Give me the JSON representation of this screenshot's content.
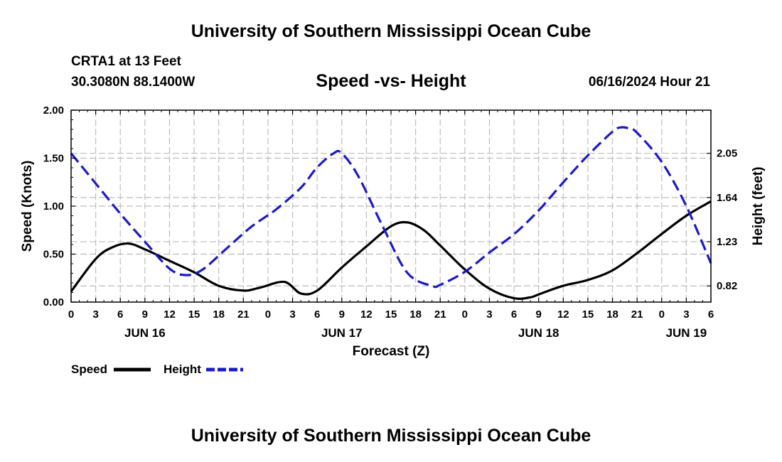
{
  "header": {
    "title": "University of Southern Mississippi Ocean Cube",
    "station": "CRTA1 at 13 Feet",
    "coordinates": "30.3080N  88.1400W",
    "chart_title": "Speed -vs- Height",
    "datetime": "06/16/2024 Hour 21"
  },
  "footer": {
    "title": "University of Southern Mississippi Ocean Cube"
  },
  "colors": {
    "speed": "#000000",
    "height": "#1a1acc",
    "grid": "#bdbdbd"
  },
  "chart_data": {
    "type": "line",
    "title": "Speed -vs- Height",
    "xlabel": "Forecast (Z)",
    "ylabel": "Speed (Knots)",
    "y2label": "Height (feet)",
    "x_range_hours": [
      0,
      78
    ],
    "ylim": [
      0,
      2.0
    ],
    "y2lim": [
      0.67,
      2.45
    ],
    "x_tick_labels": [
      "0",
      "3",
      "6",
      "9",
      "12",
      "15",
      "18",
      "21",
      "0",
      "3",
      "6",
      "9",
      "12",
      "15",
      "18",
      "21",
      "0",
      "3",
      "6",
      "9",
      "12",
      "15",
      "18",
      "21",
      "0",
      "3",
      "6"
    ],
    "x_tick_step_hours": 3,
    "y_ticks": [
      {
        "value": 0.0,
        "label": "0.00"
      },
      {
        "value": 0.5,
        "label": "0.50"
      },
      {
        "value": 1.0,
        "label": "1.00"
      },
      {
        "value": 1.5,
        "label": "1.50"
      },
      {
        "value": 2.0,
        "label": "2.00"
      }
    ],
    "y2_ticks": [
      {
        "value": 0.82,
        "label": "0.82"
      },
      {
        "value": 1.23,
        "label": "1.23"
      },
      {
        "value": 1.64,
        "label": "1.64"
      },
      {
        "value": 2.05,
        "label": "2.05"
      }
    ],
    "day_labels": [
      {
        "hour": 9,
        "label": "JUN 16"
      },
      {
        "hour": 33,
        "label": "JUN 17"
      },
      {
        "hour": 57,
        "label": "JUN 18"
      },
      {
        "hour": 75,
        "label": "JUN 19"
      }
    ],
    "series": [
      {
        "name": "Speed",
        "axis": "left",
        "style": "solid",
        "x": [
          0,
          3,
          5,
          7,
          9,
          12,
          15,
          18,
          21,
          23,
          26,
          28,
          30,
          33,
          36,
          39,
          41,
          43,
          45,
          48,
          51,
          54,
          56,
          57,
          60,
          63,
          66,
          69,
          72,
          75,
          78
        ],
        "values": [
          0.11,
          0.45,
          0.57,
          0.61,
          0.55,
          0.43,
          0.31,
          0.17,
          0.12,
          0.15,
          0.21,
          0.09,
          0.12,
          0.36,
          0.58,
          0.79,
          0.83,
          0.75,
          0.59,
          0.34,
          0.14,
          0.04,
          0.05,
          0.08,
          0.17,
          0.23,
          0.33,
          0.51,
          0.71,
          0.9,
          1.05
        ]
      },
      {
        "name": "Height",
        "axis": "right",
        "style": "dashed",
        "x": [
          0,
          3,
          6,
          9,
          12,
          14,
          16,
          19,
          22,
          25,
          28,
          30,
          32,
          33,
          35,
          38,
          41,
          44,
          45,
          48,
          51,
          54,
          57,
          60,
          63,
          66,
          67,
          68,
          69,
          72,
          75,
          78
        ],
        "values": [
          2.05,
          1.77,
          1.49,
          1.23,
          0.98,
          0.92,
          0.97,
          1.17,
          1.37,
          1.53,
          1.73,
          1.92,
          2.05,
          2.05,
          1.84,
          1.37,
          0.94,
          0.82,
          0.83,
          0.95,
          1.13,
          1.3,
          1.52,
          1.78,
          2.03,
          2.25,
          2.29,
          2.28,
          2.24,
          1.97,
          1.56,
          1.03
        ]
      }
    ],
    "legend": [
      {
        "label": "Speed",
        "style": "solid"
      },
      {
        "label": "Height",
        "style": "dashed"
      }
    ]
  }
}
